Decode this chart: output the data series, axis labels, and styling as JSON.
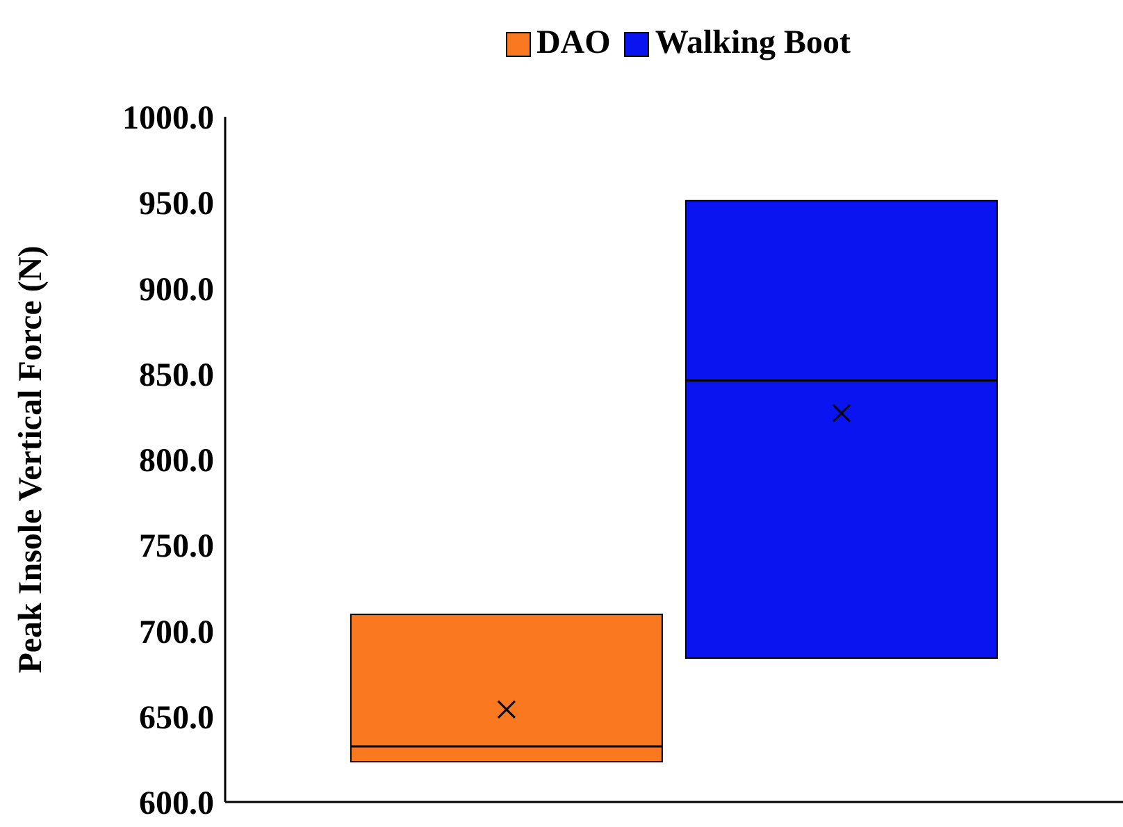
{
  "chart_data": {
    "type": "box",
    "categories": [
      null
    ],
    "ylabel": "Peak Insole Vertical Force (N)",
    "ylim": [
      600,
      1000
    ],
    "yticks": [
      {
        "value": 600,
        "label": "600.0"
      },
      {
        "value": 650,
        "label": "650.0"
      },
      {
        "value": 700,
        "label": "700.0"
      },
      {
        "value": 750,
        "label": "750.0"
      },
      {
        "value": 800,
        "label": "800.0"
      },
      {
        "value": 850,
        "label": "850.0"
      },
      {
        "value": 900,
        "label": "900.0"
      },
      {
        "value": 950,
        "label": "950.0"
      },
      {
        "value": 1000,
        "label": "1000.0"
      }
    ],
    "legend": "top",
    "grid": false,
    "series": [
      {
        "name": "DAO",
        "color": "#fa7820",
        "boxes": [
          {
            "low": 623.5,
            "q1": 623.5,
            "median": 632.5,
            "q3": 709.5,
            "high": 709.5,
            "mean": 654
          }
        ]
      },
      {
        "name": "Walking Boot",
        "color": "#0a14f0",
        "boxes": [
          {
            "low": 684,
            "q1": 684,
            "median": 846,
            "q3": 951,
            "high": 951,
            "mean": 827
          }
        ]
      }
    ]
  }
}
